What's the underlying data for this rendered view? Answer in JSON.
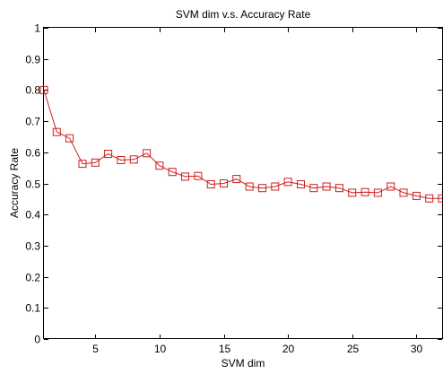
{
  "chart_data": {
    "type": "line",
    "title": "SVM dim v.s. Accuracy Rate",
    "xlabel": "SVM dim",
    "ylabel": "Accuracy Rate",
    "xlim": [
      1,
      32
    ],
    "ylim": [
      0,
      1
    ],
    "xticks": [
      5,
      10,
      15,
      20,
      25,
      30
    ],
    "yticks": [
      0,
      0.1,
      0.2,
      0.3,
      0.4,
      0.5,
      0.6,
      0.7,
      0.8,
      0.9,
      1
    ],
    "grid": false,
    "series": [
      {
        "color": "#cc1f1f",
        "marker": "square",
        "x": [
          1,
          2,
          3,
          4,
          5,
          6,
          7,
          8,
          9,
          10,
          11,
          12,
          13,
          14,
          15,
          16,
          17,
          18,
          19,
          20,
          21,
          22,
          23,
          24,
          25,
          26,
          27,
          28,
          29,
          30,
          31,
          32
        ],
        "y": [
          0.8,
          0.665,
          0.645,
          0.563,
          0.567,
          0.595,
          0.575,
          0.577,
          0.597,
          0.557,
          0.537,
          0.522,
          0.524,
          0.497,
          0.5,
          0.514,
          0.49,
          0.485,
          0.49,
          0.505,
          0.497,
          0.485,
          0.49,
          0.485,
          0.47,
          0.472,
          0.47,
          0.49,
          0.47,
          0.46,
          0.452,
          0.452
        ]
      }
    ]
  }
}
